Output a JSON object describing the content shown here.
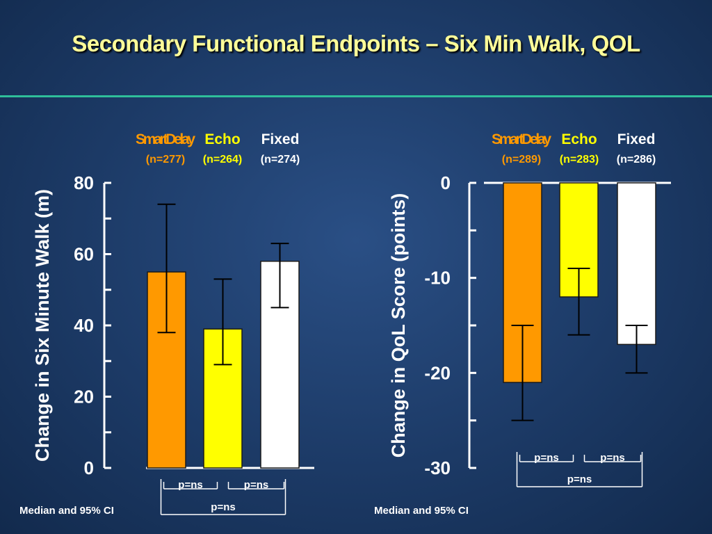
{
  "slide": {
    "title": "Secondary Functional Endpoints – Six Min Walk, QOL"
  },
  "chart_data": [
    {
      "type": "bar",
      "ylabel": "Change in Six Minute Walk (m)",
      "ylim": [
        0,
        80
      ],
      "yticks": [
        0,
        20,
        40,
        60,
        80
      ],
      "categories": [
        "SmartDelay",
        "Echo",
        "Fixed"
      ],
      "category_n": [
        "(n=277)",
        "(n=264)",
        "(n=274)"
      ],
      "category_colors": [
        "#ff9900",
        "#ffff00",
        "#ffffff"
      ],
      "values": [
        55,
        39,
        58
      ],
      "ci_low": [
        38,
        29,
        45
      ],
      "ci_high": [
        74,
        53,
        63
      ],
      "comparisons": [
        "p=ns",
        "p=ns",
        "p=ns"
      ],
      "footnote": "Median and 95% CI"
    },
    {
      "type": "bar",
      "ylabel": "Change in QoL Score (points)",
      "ylim": [
        -30,
        0
      ],
      "yticks": [
        0,
        -10,
        -20,
        -30
      ],
      "categories": [
        "SmartDelay",
        "Echo",
        "Fixed"
      ],
      "category_n": [
        "(n=289)",
        "(n=283)",
        "(n=286)"
      ],
      "category_colors": [
        "#ff9900",
        "#ffff00",
        "#ffffff"
      ],
      "values": [
        -21,
        -12,
        -17
      ],
      "ci_low": [
        -25,
        -16,
        -20
      ],
      "ci_high": [
        -15,
        -9,
        -15
      ],
      "comparisons": [
        "p=ns",
        "p=ns",
        "p=ns"
      ],
      "footnote": "Median and 95% CI"
    }
  ]
}
